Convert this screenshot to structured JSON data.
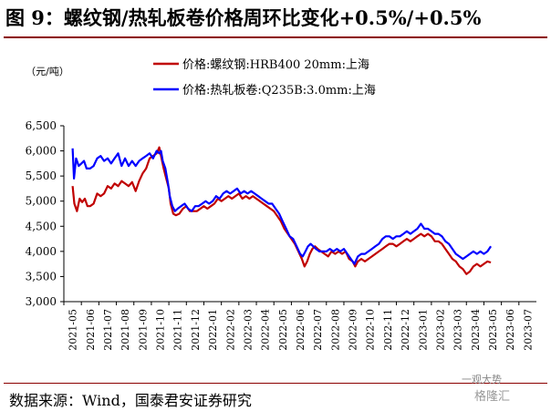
{
  "figure": {
    "title": "图 9：螺纹钢/热轧板卷价格周环比变化+0.5%/+0.5%",
    "source": "数据来源：Wind，国泰君安证券研究",
    "watermark_top": "一观大势",
    "watermark_bottom": "格隆汇"
  },
  "chart_data": {
    "type": "line",
    "ylabel": "（元/吨）",
    "ylim": [
      3000,
      6500
    ],
    "yticks": [
      "3,000",
      "3,500",
      "4,000",
      "4,500",
      "5,000",
      "5,500",
      "6,000",
      "6,500"
    ],
    "yvalues": [
      3000,
      3500,
      4000,
      4500,
      5000,
      5500,
      6000,
      6500
    ],
    "xticks": [
      "2021-05",
      "2021-06",
      "2021-07",
      "2021-08",
      "2021-09",
      "2021-10",
      "2021-11",
      "2021-12",
      "2022-01",
      "2022-02",
      "2022-03",
      "2022-04",
      "2022-05",
      "2022-06",
      "2022-07",
      "2022-08",
      "2022-09",
      "2022-10",
      "2022-11",
      "2022-12",
      "2023-01",
      "2023-02",
      "2023-03",
      "2023-04",
      "2023-05",
      "2023-06",
      "2023-07"
    ],
    "legend_position": "top",
    "grid": false,
    "series": [
      {
        "name": "价格:螺纹钢:HRB400 20mm:上海",
        "color": "#c00000",
        "points": [
          [
            0,
            5300
          ],
          [
            0.1,
            4950
          ],
          [
            0.25,
            4800
          ],
          [
            0.4,
            5050
          ],
          [
            0.55,
            4980
          ],
          [
            0.7,
            5050
          ],
          [
            0.85,
            4900
          ],
          [
            1.0,
            4900
          ],
          [
            1.2,
            4950
          ],
          [
            1.4,
            5150
          ],
          [
            1.6,
            5100
          ],
          [
            1.8,
            5150
          ],
          [
            2.0,
            5300
          ],
          [
            2.2,
            5250
          ],
          [
            2.4,
            5350
          ],
          [
            2.6,
            5300
          ],
          [
            2.8,
            5400
          ],
          [
            3.0,
            5350
          ],
          [
            3.2,
            5300
          ],
          [
            3.4,
            5380
          ],
          [
            3.6,
            5200
          ],
          [
            3.8,
            5400
          ],
          [
            4.0,
            5550
          ],
          [
            4.2,
            5650
          ],
          [
            4.4,
            5850
          ],
          [
            4.6,
            5900
          ],
          [
            4.8,
            5950
          ],
          [
            4.95,
            6070
          ],
          [
            5.05,
            5900
          ],
          [
            5.2,
            5650
          ],
          [
            5.35,
            5450
          ],
          [
            5.5,
            5250
          ],
          [
            5.6,
            4950
          ],
          [
            5.75,
            4750
          ],
          [
            5.9,
            4720
          ],
          [
            6.1,
            4750
          ],
          [
            6.3,
            4850
          ],
          [
            6.5,
            4900
          ],
          [
            6.7,
            4800
          ],
          [
            6.9,
            4800
          ],
          [
            7.1,
            4800
          ],
          [
            7.3,
            4850
          ],
          [
            7.5,
            4900
          ],
          [
            7.7,
            4850
          ],
          [
            7.9,
            4900
          ],
          [
            8.1,
            4950
          ],
          [
            8.3,
            5050
          ],
          [
            8.5,
            5000
          ],
          [
            8.7,
            5050
          ],
          [
            8.9,
            5100
          ],
          [
            9.1,
            5050
          ],
          [
            9.3,
            5100
          ],
          [
            9.5,
            5150
          ],
          [
            9.7,
            5050
          ],
          [
            9.9,
            5100
          ],
          [
            10.1,
            5050
          ],
          [
            10.3,
            5100
          ],
          [
            10.5,
            5050
          ],
          [
            10.7,
            5000
          ],
          [
            10.9,
            4950
          ],
          [
            11.1,
            4900
          ],
          [
            11.3,
            4850
          ],
          [
            11.5,
            4800
          ],
          [
            11.7,
            4700
          ],
          [
            11.9,
            4600
          ],
          [
            12.1,
            4450
          ],
          [
            12.3,
            4350
          ],
          [
            12.5,
            4250
          ],
          [
            12.7,
            4150
          ],
          [
            12.9,
            4000
          ],
          [
            13.1,
            3850
          ],
          [
            13.25,
            3700
          ],
          [
            13.4,
            3800
          ],
          [
            13.55,
            3950
          ],
          [
            13.7,
            4050
          ],
          [
            13.85,
            4100
          ],
          [
            14.0,
            4050
          ],
          [
            14.2,
            4000
          ],
          [
            14.4,
            3950
          ],
          [
            14.6,
            3900
          ],
          [
            14.8,
            4000
          ],
          [
            15.0,
            3950
          ],
          [
            15.2,
            4000
          ],
          [
            15.4,
            3950
          ],
          [
            15.6,
            4000
          ],
          [
            15.8,
            3850
          ],
          [
            16.0,
            3800
          ],
          [
            16.15,
            3700
          ],
          [
            16.3,
            3800
          ],
          [
            16.5,
            3850
          ],
          [
            16.7,
            3800
          ],
          [
            16.9,
            3850
          ],
          [
            17.1,
            3900
          ],
          [
            17.3,
            3950
          ],
          [
            17.5,
            4000
          ],
          [
            17.7,
            4050
          ],
          [
            17.9,
            4100
          ],
          [
            18.1,
            4150
          ],
          [
            18.3,
            4150
          ],
          [
            18.5,
            4100
          ],
          [
            18.7,
            4150
          ],
          [
            18.9,
            4200
          ],
          [
            19.1,
            4250
          ],
          [
            19.3,
            4200
          ],
          [
            19.5,
            4250
          ],
          [
            19.7,
            4300
          ],
          [
            19.9,
            4350
          ],
          [
            20.1,
            4300
          ],
          [
            20.3,
            4350
          ],
          [
            20.5,
            4300
          ],
          [
            20.7,
            4200
          ],
          [
            20.9,
            4200
          ],
          [
            21.1,
            4150
          ],
          [
            21.3,
            4050
          ],
          [
            21.5,
            3950
          ],
          [
            21.7,
            3850
          ],
          [
            21.9,
            3800
          ],
          [
            22.1,
            3700
          ],
          [
            22.3,
            3650
          ],
          [
            22.5,
            3550
          ],
          [
            22.7,
            3600
          ],
          [
            22.9,
            3700
          ],
          [
            23.1,
            3750
          ],
          [
            23.3,
            3700
          ],
          [
            23.5,
            3750
          ],
          [
            23.7,
            3800
          ],
          [
            23.9,
            3780
          ]
        ]
      },
      {
        "name": "价格:热轧板卷:Q235B:3.0mm:上海",
        "color": "#0000ff",
        "points": [
          [
            0,
            6050
          ],
          [
            0.08,
            5450
          ],
          [
            0.2,
            5850
          ],
          [
            0.35,
            5700
          ],
          [
            0.5,
            5750
          ],
          [
            0.65,
            5800
          ],
          [
            0.8,
            5650
          ],
          [
            1.0,
            5650
          ],
          [
            1.2,
            5700
          ],
          [
            1.4,
            5850
          ],
          [
            1.6,
            5900
          ],
          [
            1.8,
            5800
          ],
          [
            2.0,
            5850
          ],
          [
            2.2,
            5750
          ],
          [
            2.4,
            5850
          ],
          [
            2.6,
            5950
          ],
          [
            2.8,
            5700
          ],
          [
            3.0,
            5850
          ],
          [
            3.2,
            5700
          ],
          [
            3.4,
            5800
          ],
          [
            3.6,
            5700
          ],
          [
            3.8,
            5800
          ],
          [
            4.0,
            5850
          ],
          [
            4.2,
            5900
          ],
          [
            4.4,
            5950
          ],
          [
            4.6,
            5850
          ],
          [
            4.8,
            6000
          ],
          [
            4.95,
            5950
          ],
          [
            5.05,
            6000
          ],
          [
            5.15,
            5800
          ],
          [
            5.3,
            5650
          ],
          [
            5.45,
            5350
          ],
          [
            5.55,
            5100
          ],
          [
            5.7,
            4900
          ],
          [
            5.85,
            4800
          ],
          [
            6.0,
            4850
          ],
          [
            6.2,
            4900
          ],
          [
            6.4,
            4950
          ],
          [
            6.6,
            4850
          ],
          [
            6.8,
            4800
          ],
          [
            7.0,
            4900
          ],
          [
            7.2,
            4900
          ],
          [
            7.4,
            4950
          ],
          [
            7.6,
            5000
          ],
          [
            7.8,
            4950
          ],
          [
            8.0,
            5000
          ],
          [
            8.2,
            5100
          ],
          [
            8.4,
            5050
          ],
          [
            8.6,
            5150
          ],
          [
            8.8,
            5200
          ],
          [
            9.0,
            5150
          ],
          [
            9.2,
            5200
          ],
          [
            9.4,
            5250
          ],
          [
            9.6,
            5150
          ],
          [
            9.8,
            5200
          ],
          [
            10.0,
            5150
          ],
          [
            10.2,
            5200
          ],
          [
            10.4,
            5150
          ],
          [
            10.6,
            5100
          ],
          [
            10.8,
            5050
          ],
          [
            11.0,
            5000
          ],
          [
            11.2,
            4950
          ],
          [
            11.4,
            4950
          ],
          [
            11.6,
            4850
          ],
          [
            11.8,
            4750
          ],
          [
            12.0,
            4600
          ],
          [
            12.2,
            4450
          ],
          [
            12.4,
            4300
          ],
          [
            12.6,
            4250
          ],
          [
            12.8,
            4100
          ],
          [
            13.0,
            3950
          ],
          [
            13.15,
            3900
          ],
          [
            13.3,
            4000
          ],
          [
            13.45,
            4100
          ],
          [
            13.6,
            4150
          ],
          [
            13.75,
            4100
          ],
          [
            13.9,
            4050
          ],
          [
            14.1,
            4000
          ],
          [
            14.3,
            4000
          ],
          [
            14.5,
            4000
          ],
          [
            14.7,
            4050
          ],
          [
            14.9,
            4000
          ],
          [
            15.1,
            4050
          ],
          [
            15.3,
            4000
          ],
          [
            15.5,
            4050
          ],
          [
            15.7,
            3950
          ],
          [
            15.9,
            3850
          ],
          [
            16.1,
            3750
          ],
          [
            16.3,
            3900
          ],
          [
            16.5,
            3950
          ],
          [
            16.7,
            3950
          ],
          [
            16.9,
            4000
          ],
          [
            17.1,
            4050
          ],
          [
            17.3,
            4100
          ],
          [
            17.5,
            4150
          ],
          [
            17.7,
            4250
          ],
          [
            17.9,
            4300
          ],
          [
            18.1,
            4300
          ],
          [
            18.3,
            4250
          ],
          [
            18.5,
            4300
          ],
          [
            18.7,
            4300
          ],
          [
            18.9,
            4350
          ],
          [
            19.1,
            4400
          ],
          [
            19.3,
            4350
          ],
          [
            19.5,
            4400
          ],
          [
            19.7,
            4450
          ],
          [
            19.9,
            4550
          ],
          [
            20.1,
            4450
          ],
          [
            20.3,
            4450
          ],
          [
            20.5,
            4400
          ],
          [
            20.7,
            4350
          ],
          [
            20.9,
            4350
          ],
          [
            21.1,
            4300
          ],
          [
            21.3,
            4200
          ],
          [
            21.5,
            4150
          ],
          [
            21.7,
            4050
          ],
          [
            21.9,
            3950
          ],
          [
            22.1,
            3900
          ],
          [
            22.3,
            3850
          ],
          [
            22.5,
            3900
          ],
          [
            22.7,
            3950
          ],
          [
            22.9,
            4000
          ],
          [
            23.1,
            3950
          ],
          [
            23.3,
            4000
          ],
          [
            23.5,
            3950
          ],
          [
            23.7,
            4000
          ],
          [
            23.9,
            4100
          ]
        ]
      }
    ]
  }
}
